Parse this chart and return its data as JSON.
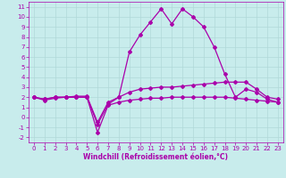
{
  "xlabel": "Windchill (Refroidissement éolien,°C)",
  "background_color": "#c8ecec",
  "grid_color": "#b0d8d8",
  "line_color": "#aa00aa",
  "xlim": [
    -0.5,
    23.5
  ],
  "ylim": [
    -2.5,
    11.5
  ],
  "xticks": [
    0,
    1,
    2,
    3,
    4,
    5,
    6,
    7,
    8,
    9,
    10,
    11,
    12,
    13,
    14,
    15,
    16,
    17,
    18,
    19,
    20,
    21,
    22,
    23
  ],
  "yticks": [
    -2,
    -1,
    0,
    1,
    2,
    3,
    4,
    5,
    6,
    7,
    8,
    9,
    10,
    11
  ],
  "curve_spike_x": [
    0,
    1,
    2,
    3,
    4,
    5,
    6,
    7,
    8,
    9,
    10,
    11,
    12,
    13,
    14,
    15,
    16,
    17,
    18,
    19,
    20,
    21,
    22,
    23
  ],
  "curve_spike_y": [
    2.0,
    1.8,
    2.0,
    2.0,
    2.0,
    2.0,
    -0.7,
    1.3,
    2.0,
    6.5,
    8.2,
    9.5,
    10.8,
    9.3,
    10.8,
    10.0,
    9.0,
    7.0,
    4.3,
    2.0,
    2.8,
    2.5,
    1.8,
    1.5
  ],
  "curve_mid_x": [
    0,
    1,
    2,
    3,
    4,
    5,
    6,
    7,
    8,
    9,
    10,
    11,
    12,
    13,
    14,
    15,
    16,
    17,
    18,
    19,
    20,
    21,
    22,
    23
  ],
  "curve_mid_y": [
    2.0,
    1.8,
    2.0,
    2.0,
    2.1,
    2.1,
    -0.5,
    1.5,
    2.0,
    2.5,
    2.8,
    2.9,
    3.0,
    3.0,
    3.1,
    3.2,
    3.3,
    3.4,
    3.5,
    3.5,
    3.5,
    2.8,
    2.0,
    1.8
  ],
  "curve_flat_x": [
    0,
    1,
    2,
    3,
    4,
    5,
    6,
    7,
    8,
    9,
    10,
    11,
    12,
    13,
    14,
    15,
    16,
    17,
    18,
    19,
    20,
    21,
    22,
    23
  ],
  "curve_flat_y": [
    2.0,
    1.7,
    1.9,
    2.0,
    2.0,
    2.0,
    -1.5,
    1.2,
    1.5,
    1.7,
    1.8,
    1.9,
    1.9,
    2.0,
    2.0,
    2.0,
    2.0,
    2.0,
    2.0,
    1.9,
    1.8,
    1.7,
    1.6,
    1.5
  ],
  "marker": "D",
  "markersize": 2.0,
  "linewidth": 0.9,
  "tick_labelsize": 5.0,
  "xlabel_fontsize": 5.5
}
